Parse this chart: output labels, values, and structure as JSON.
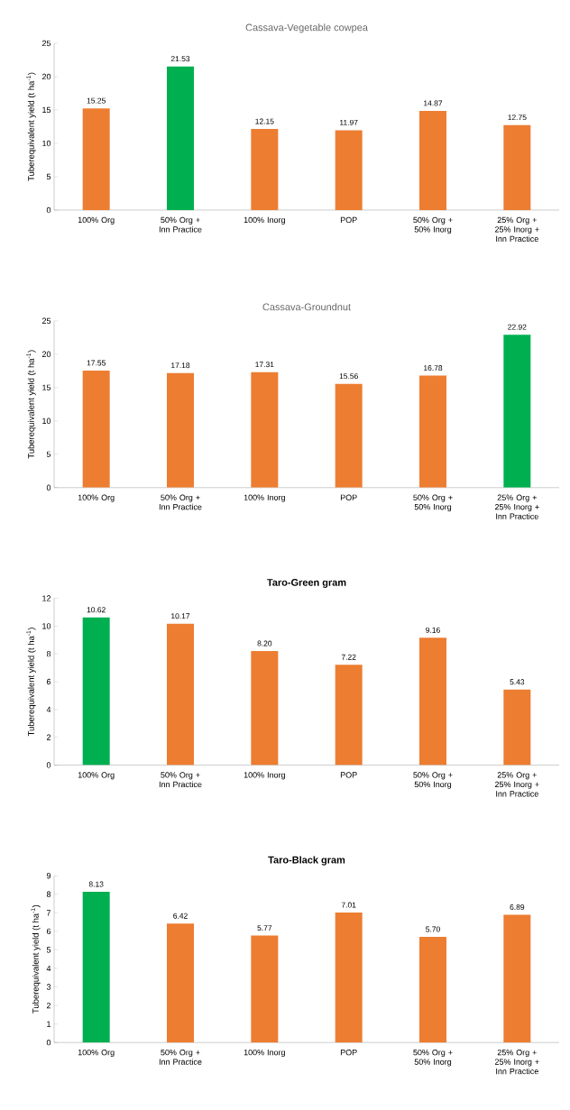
{
  "chart_data": [
    {
      "type": "bar",
      "title": "Cassava-Vegetable cowpea",
      "ylabel": "Tuberequivalent yield (t ha$^{-1}$)",
      "categories": [
        "100% Org",
        "50% Org + Inn Practice",
        "100% Inorg",
        "POP",
        "50% Org + 50% Inorg",
        "25% Org + 25% Inorg + Inn Practice"
      ],
      "values": [
        15.25,
        21.53,
        12.15,
        11.97,
        14.87,
        12.75
      ],
      "value_labels": [
        "15.25",
        "21.53",
        "12.15",
        "11.97",
        "14.87",
        "12.75"
      ],
      "colors": [
        "#ed7d31",
        "#00b050",
        "#ed7d31",
        "#ed7d31",
        "#ed7d31",
        "#ed7d31"
      ],
      "ylim": [
        0,
        25
      ],
      "yticks": [
        0,
        5,
        10,
        15,
        20,
        25
      ]
    },
    {
      "type": "bar",
      "title": "Cassava-Groundnut",
      "ylabel": "Tuberequivalent yield (t ha$^{-1}$)",
      "categories": [
        "100% Org",
        "50% Org + Inn Practice",
        "100% Inorg",
        "POP",
        "50% Org + 50% Inorg",
        "25% Org + 25% Inorg + Inn Practice"
      ],
      "values": [
        17.55,
        17.18,
        17.31,
        15.56,
        16.78,
        22.92
      ],
      "value_labels": [
        "17.55",
        "17.18",
        "17.31",
        "15.56",
        "16.78",
        "22.92"
      ],
      "colors": [
        "#ed7d31",
        "#ed7d31",
        "#ed7d31",
        "#ed7d31",
        "#ed7d31",
        "#00b050"
      ],
      "ylim": [
        0,
        25
      ],
      "yticks": [
        0,
        5,
        10,
        15,
        20,
        25
      ]
    },
    {
      "type": "bar",
      "title": "Taro-Green gram",
      "ylabel": "Tuberequivalent yield (t ha$^{-1}$)",
      "categories": [
        "100% Org",
        "50% Org + Inn Practice",
        "100% Inorg",
        "POP",
        "50% Org + 50% Inorg",
        "25% Org + 25% Inorg + Inn Practice"
      ],
      "values": [
        10.62,
        10.17,
        8.2,
        7.22,
        9.16,
        5.43
      ],
      "value_labels": [
        "10.62",
        "10.17",
        "8.20",
        "7.22",
        "9.16",
        "5.43"
      ],
      "colors": [
        "#00b050",
        "#ed7d31",
        "#ed7d31",
        "#ed7d31",
        "#ed7d31",
        "#ed7d31"
      ],
      "ylim": [
        0,
        12
      ],
      "yticks": [
        0,
        2,
        4,
        6,
        8,
        10,
        12
      ]
    },
    {
      "type": "bar",
      "title": "Taro-Black gram",
      "ylabel": "Tuberequivalent yield (t ha$^{-1}$)",
      "categories": [
        "100% Org",
        "50% Org + Inn Practice",
        "100% Inorg",
        "POP",
        "50% Org + 50% Inorg",
        "25% Org + 25% Inorg + Inn Practice"
      ],
      "values": [
        8.13,
        6.42,
        5.77,
        7.01,
        5.7,
        6.89
      ],
      "value_labels": [
        "8.13",
        "6.42",
        "5.77",
        "7.01",
        "5.70",
        "6.89"
      ],
      "colors": [
        "#00b050",
        "#ed7d31",
        "#ed7d31",
        "#ed7d31",
        "#ed7d31",
        "#ed7d31"
      ],
      "ylim": [
        0,
        9
      ],
      "yticks": [
        0,
        1,
        2,
        3,
        4,
        5,
        6,
        7,
        8,
        9
      ]
    }
  ]
}
